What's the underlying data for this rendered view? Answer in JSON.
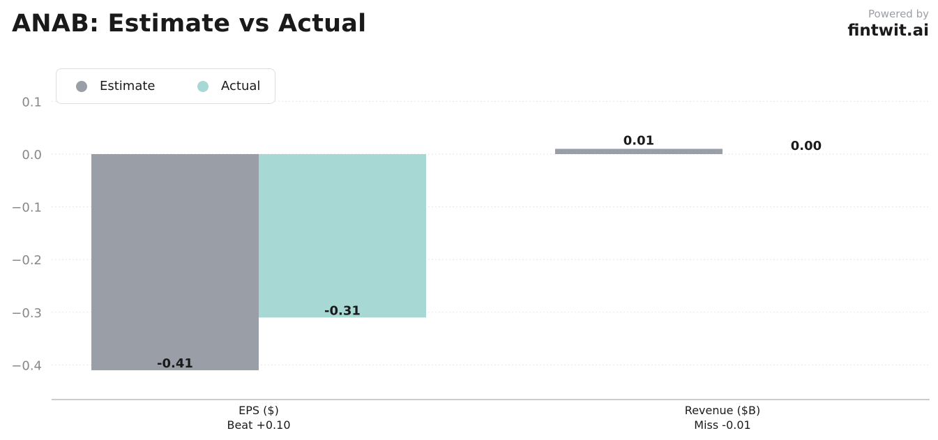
{
  "header": {
    "title": "ANAB: Estimate vs Actual",
    "powered_by": "Powered by",
    "brand": "fintwit.ai"
  },
  "colors": {
    "estimate": "#9a9ea6",
    "actual": "#a8d8d4",
    "grid": "#e6e6e6",
    "axis": "#bbbbbb",
    "tick_text": "#888888"
  },
  "chart_data": {
    "type": "bar",
    "title": "ANAB: Estimate vs Actual",
    "categories": [
      "EPS ($)",
      "Revenue ($B)"
    ],
    "category_notes": [
      "Beat +0.10",
      "Miss -0.01"
    ],
    "series": [
      {
        "name": "Estimate",
        "values": [
          -0.41,
          0.01
        ],
        "labels": [
          "-0.41",
          "0.01"
        ]
      },
      {
        "name": "Actual",
        "values": [
          -0.31,
          0.0
        ],
        "labels": [
          "-0.31",
          "0.00"
        ]
      }
    ],
    "yticks": [
      0.1,
      0.0,
      -0.1,
      -0.2,
      -0.3,
      -0.4
    ],
    "ytick_labels": [
      "0.1",
      "0.0",
      "−0.1",
      "−0.2",
      "−0.3",
      "−0.4"
    ],
    "ylim": [
      -0.466,
      0.1
    ],
    "grid": true,
    "legend_position": "top-left"
  }
}
